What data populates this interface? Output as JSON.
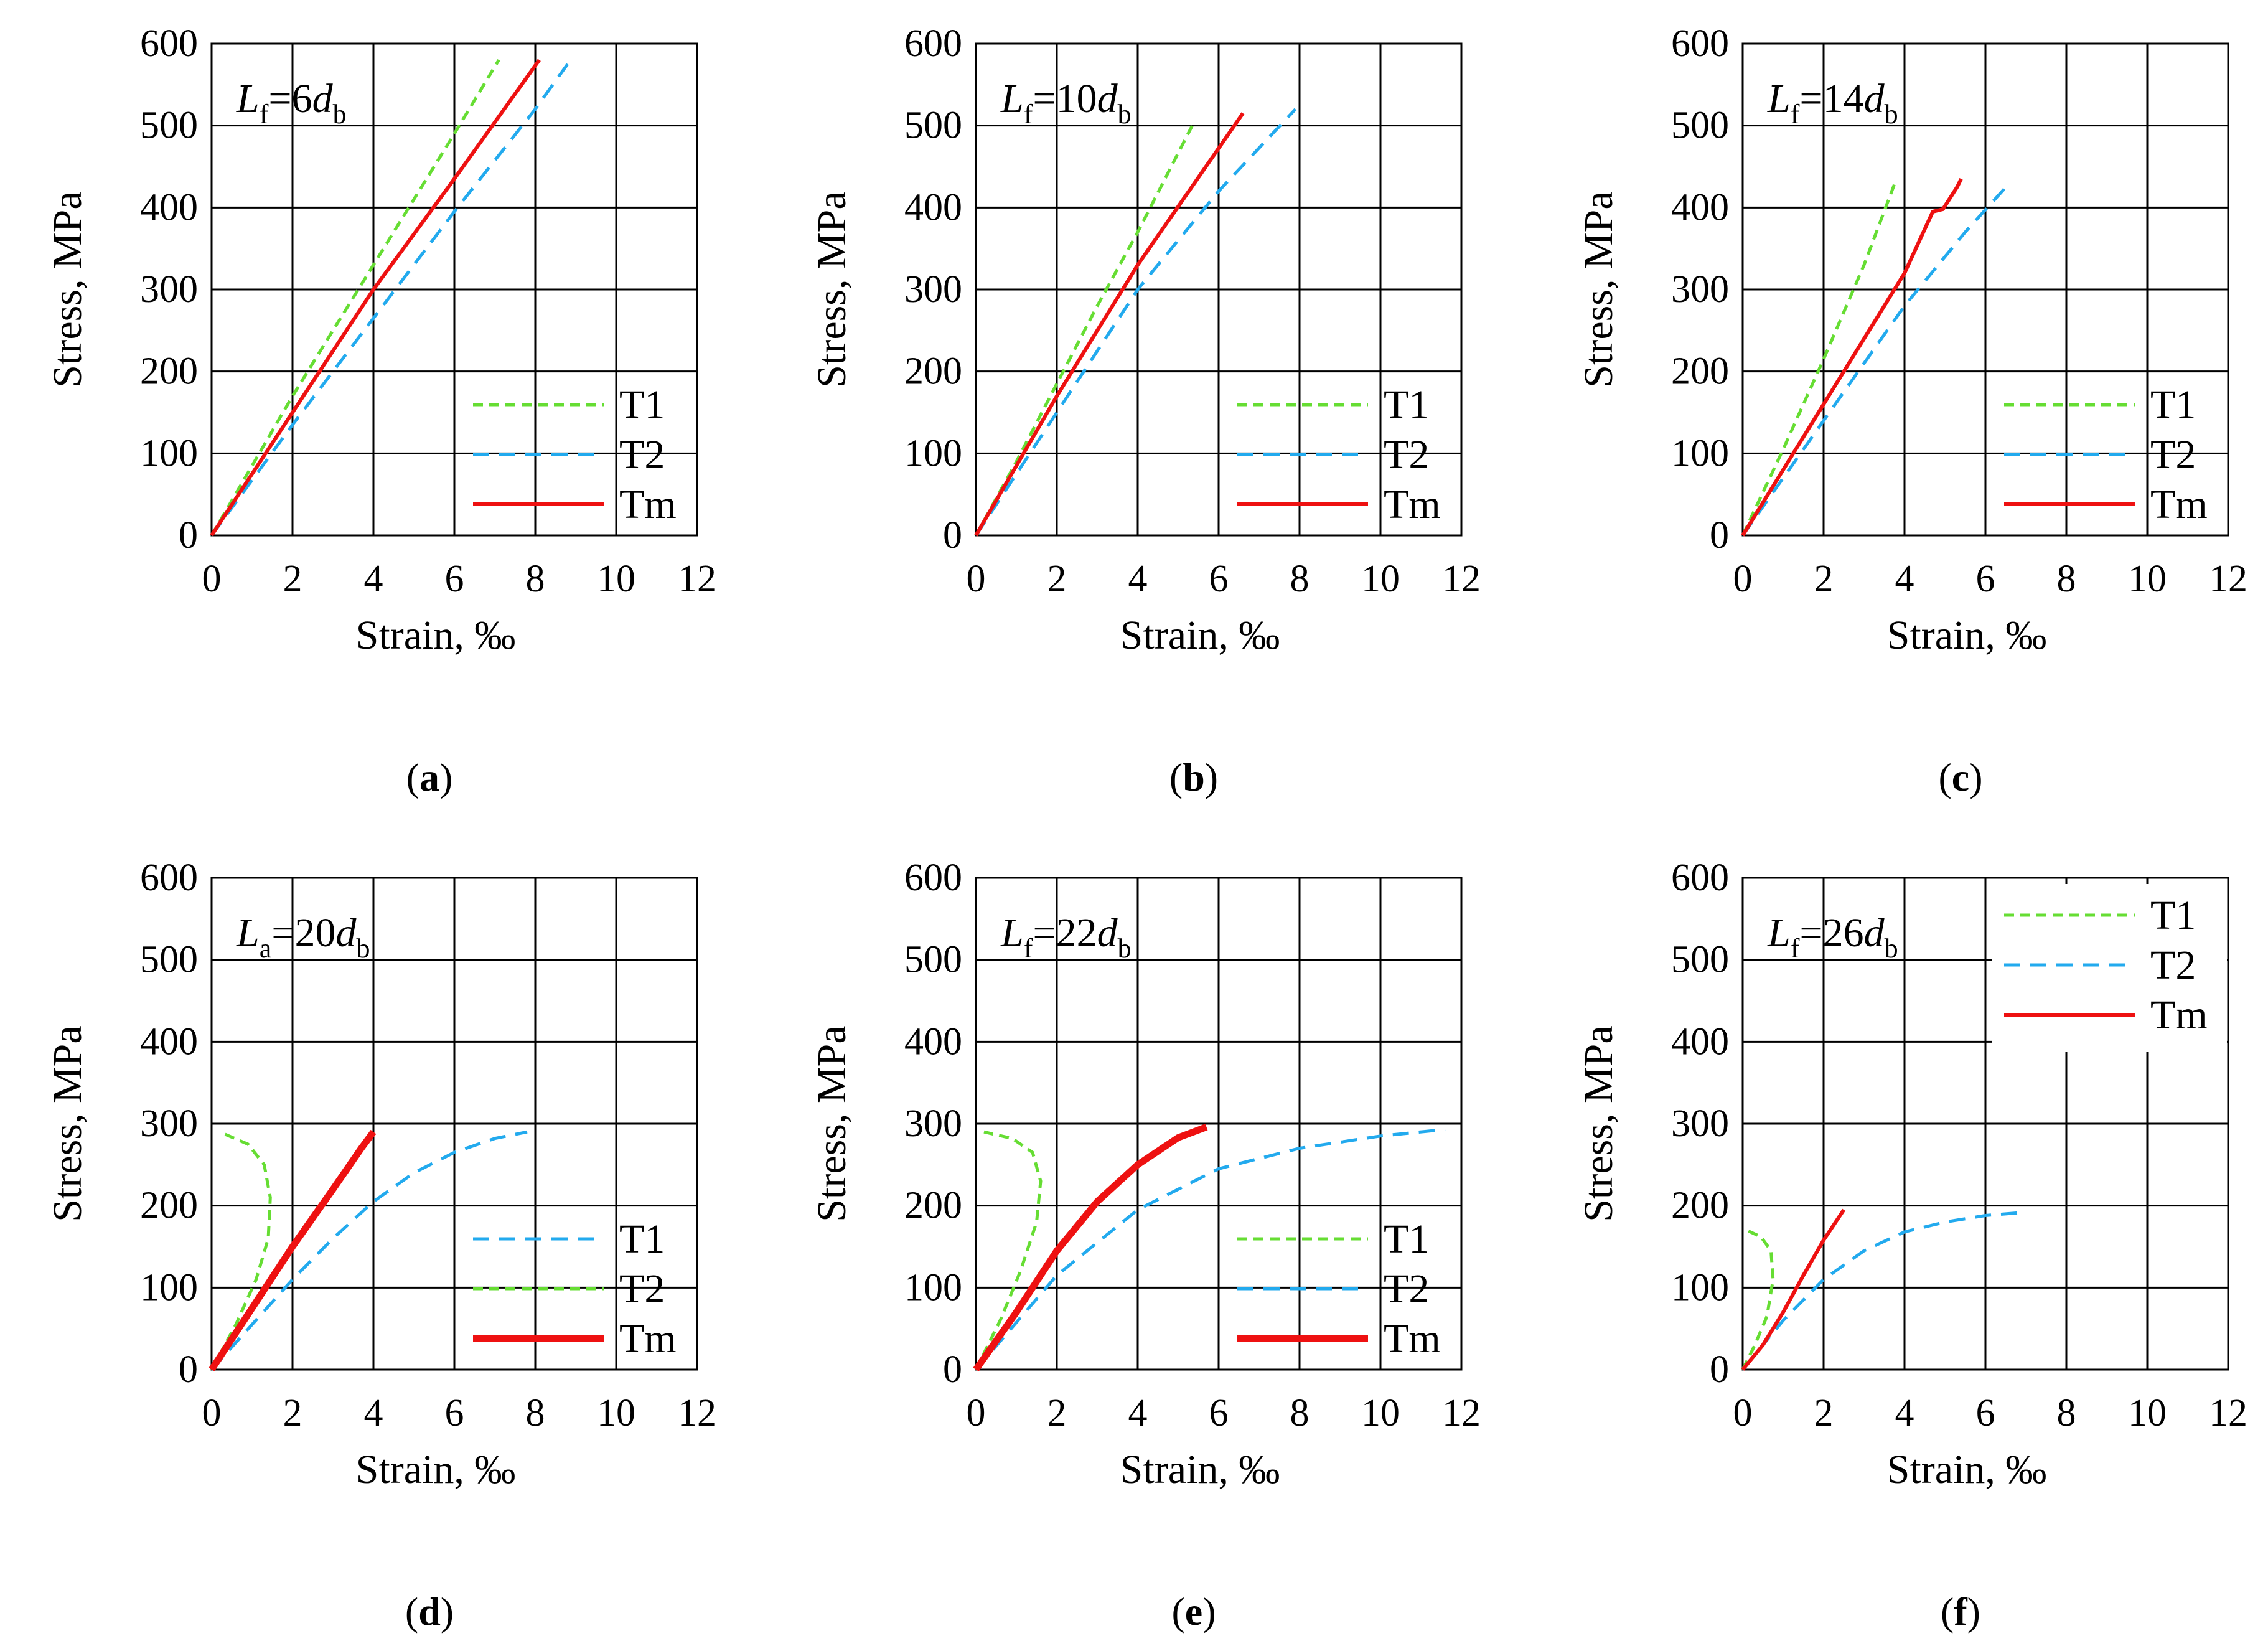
{
  "figure": {
    "colors": {
      "T1": "#66dd33",
      "T2": "#22aaee",
      "Tm": "#ee1111",
      "grid": "#000000"
    }
  },
  "chart_data": [
    {
      "type": "line",
      "panel": "(a)",
      "panel_letter": "a",
      "annotation": {
        "var": "L",
        "sub": "f",
        "eq": "=6",
        "d": "d",
        "dsub": "b"
      },
      "xlabel": "Strain, ‰",
      "ylabel": "Stress, MPa",
      "xlim": [
        0,
        12
      ],
      "ylim": [
        0,
        600
      ],
      "xticks": [
        0,
        2,
        4,
        6,
        8,
        10,
        12
      ],
      "yticks": [
        0,
        100,
        200,
        300,
        400,
        500,
        600
      ],
      "grid": true,
      "legend_position": "bottom-right",
      "series": [
        {
          "name": "T1",
          "style": "dashed-short",
          "color": "#66dd33",
          "x": [
            0,
            1,
            2,
            3,
            4,
            5,
            6,
            7.1
          ],
          "y": [
            0,
            85,
            170,
            250,
            330,
            410,
            490,
            580
          ]
        },
        {
          "name": "T2",
          "style": "dashed-long",
          "color": "#22aaee",
          "x": [
            0,
            2,
            4,
            6,
            8,
            8.8
          ],
          "y": [
            0,
            135,
            265,
            395,
            520,
            575
          ]
        },
        {
          "name": "Tm",
          "style": "solid",
          "color": "#ee1111",
          "x": [
            0,
            2,
            4,
            6,
            8.1
          ],
          "y": [
            0,
            150,
            300,
            435,
            580
          ]
        }
      ]
    },
    {
      "type": "line",
      "panel": "(b)",
      "panel_letter": "b",
      "annotation": {
        "var": "L",
        "sub": "f",
        "eq": "=10",
        "d": "d",
        "dsub": "b"
      },
      "xlabel": "Strain, ‰",
      "ylabel": "Stress, MPa",
      "xlim": [
        0,
        12
      ],
      "ylim": [
        0,
        600
      ],
      "xticks": [
        0,
        2,
        4,
        6,
        8,
        10,
        12
      ],
      "yticks": [
        0,
        100,
        200,
        300,
        400,
        500,
        600
      ],
      "grid": true,
      "legend_position": "bottom-right",
      "series": [
        {
          "name": "T1",
          "style": "dashed-short",
          "color": "#66dd33",
          "x": [
            0,
            1,
            2,
            3,
            4,
            5.4
          ],
          "y": [
            0,
            90,
            185,
            280,
            370,
            505
          ]
        },
        {
          "name": "T2",
          "style": "dashed-long",
          "color": "#22aaee",
          "x": [
            0,
            2,
            4,
            6,
            7.9
          ],
          "y": [
            0,
            150,
            300,
            420,
            520
          ]
        },
        {
          "name": "Tm",
          "style": "solid",
          "color": "#ee1111",
          "x": [
            0,
            2,
            4,
            6.6
          ],
          "y": [
            0,
            170,
            330,
            515
          ]
        }
      ]
    },
    {
      "type": "line",
      "panel": "(c)",
      "panel_letter": "c",
      "annotation": {
        "var": "L",
        "sub": "f",
        "eq": "=14",
        "d": "d",
        "dsub": "b"
      },
      "xlabel": "Strain, ‰",
      "ylabel": "Stress, MPa",
      "xlim": [
        0,
        12
      ],
      "ylim": [
        0,
        600
      ],
      "xticks": [
        0,
        2,
        4,
        6,
        8,
        10,
        12
      ],
      "yticks": [
        0,
        100,
        200,
        300,
        400,
        500,
        600
      ],
      "grid": true,
      "legend_position": "bottom-right",
      "series": [
        {
          "name": "T1",
          "style": "dashed-short",
          "color": "#66dd33",
          "x": [
            0,
            1,
            2,
            3,
            3.8
          ],
          "y": [
            0,
            105,
            215,
            330,
            435
          ]
        },
        {
          "name": "T2",
          "style": "dashed-long",
          "color": "#22aaee",
          "x": [
            0,
            2,
            4,
            5.5,
            6.6
          ],
          "y": [
            0,
            140,
            280,
            370,
            430
          ]
        },
        {
          "name": "Tm",
          "style": "solid",
          "color": "#ee1111",
          "x": [
            0,
            2,
            4,
            4.7,
            4.95,
            5.3,
            5.4
          ],
          "y": [
            0,
            160,
            320,
            395,
            398,
            425,
            435
          ]
        }
      ]
    },
    {
      "type": "line",
      "panel": "(d)",
      "panel_letter": "d",
      "annotation": {
        "var": "L",
        "sub": "a",
        "eq": "=20",
        "d": "d",
        "dsub": "b"
      },
      "xlabel": "Strain, ‰",
      "ylabel": "Stress, MPa",
      "xlim": [
        0,
        12
      ],
      "ylim": [
        0,
        600
      ],
      "xticks": [
        0,
        2,
        4,
        6,
        8,
        10,
        12
      ],
      "yticks": [
        0,
        100,
        200,
        300,
        400,
        500,
        600
      ],
      "grid": true,
      "legend_position": "bottom-right",
      "series": [
        {
          "name": "T1",
          "style": "dashed-long",
          "color": "#22aaee",
          "x": [
            0,
            1,
            2,
            3,
            4,
            5,
            6,
            7,
            7.8
          ],
          "y": [
            0,
            55,
            110,
            160,
            205,
            240,
            265,
            282,
            290
          ]
        },
        {
          "name": "T2",
          "style": "dashed-short",
          "color": "#66dd33",
          "x": [
            0,
            0.6,
            1.1,
            1.4,
            1.45,
            1.3,
            0.9,
            0.2
          ],
          "y": [
            0,
            55,
            110,
            160,
            210,
            250,
            275,
            290
          ]
        },
        {
          "name": "Tm",
          "style": "solid-thick",
          "color": "#ee1111",
          "x": [
            0,
            1,
            2,
            3,
            3.7,
            4
          ],
          "y": [
            0,
            75,
            150,
            220,
            270,
            290
          ]
        }
      ]
    },
    {
      "type": "line",
      "panel": "(e)",
      "panel_letter": "e",
      "annotation": {
        "var": "L",
        "sub": "f",
        "eq": "=22",
        "d": "d",
        "dsub": "b"
      },
      "xlabel": "Strain, ‰",
      "ylabel": "Stress, MPa",
      "xlim": [
        0,
        12
      ],
      "ylim": [
        0,
        600
      ],
      "xticks": [
        0,
        2,
        4,
        6,
        8,
        10,
        12
      ],
      "yticks": [
        0,
        100,
        200,
        300,
        400,
        500,
        600
      ],
      "grid": true,
      "legend_position": "bottom-right",
      "series": [
        {
          "name": "T1",
          "style": "dashed-short",
          "color": "#66dd33",
          "x": [
            0,
            0.6,
            1.1,
            1.5,
            1.6,
            1.4,
            0.9,
            0.2
          ],
          "y": [
            0,
            60,
            120,
            180,
            230,
            265,
            282,
            290
          ]
        },
        {
          "name": "T2",
          "style": "dashed-long",
          "color": "#22aaee",
          "x": [
            0,
            2,
            4,
            6,
            8,
            10,
            11.6
          ],
          "y": [
            0,
            115,
            195,
            245,
            270,
            285,
            293
          ]
        },
        {
          "name": "Tm",
          "style": "solid-thick",
          "color": "#ee1111",
          "x": [
            0,
            1,
            2,
            3,
            4,
            5,
            5.7
          ],
          "y": [
            0,
            70,
            145,
            205,
            250,
            283,
            296
          ]
        }
      ]
    },
    {
      "type": "line",
      "panel": "(f)",
      "panel_letter": "f",
      "annotation": {
        "var": "L",
        "sub": "f",
        "eq": "=26",
        "d": "d",
        "dsub": "b"
      },
      "xlabel": "Strain, ‰",
      "ylabel": "Stress, MPa",
      "xlim": [
        0,
        12
      ],
      "ylim": [
        0,
        600
      ],
      "xticks": [
        0,
        2,
        4,
        6,
        8,
        10,
        12
      ],
      "yticks": [
        0,
        100,
        200,
        300,
        400,
        500,
        600
      ],
      "grid": true,
      "legend_position": "top-right",
      "series": [
        {
          "name": "T1",
          "style": "dashed-short",
          "color": "#66dd33",
          "x": [
            0,
            0.3,
            0.6,
            0.75,
            0.7,
            0.45,
            0.1
          ],
          "y": [
            0,
            30,
            65,
            110,
            145,
            162,
            170
          ]
        },
        {
          "name": "T2",
          "style": "dashed-long",
          "color": "#22aaee",
          "x": [
            0,
            1,
            2,
            3,
            4,
            5,
            6,
            7
          ],
          "y": [
            0,
            60,
            110,
            145,
            168,
            180,
            188,
            192
          ]
        },
        {
          "name": "Tm",
          "style": "solid",
          "color": "#ee1111",
          "x": [
            0,
            0.5,
            1,
            1.5,
            2,
            2.5
          ],
          "y": [
            0,
            30,
            70,
            115,
            158,
            195
          ]
        }
      ]
    }
  ]
}
